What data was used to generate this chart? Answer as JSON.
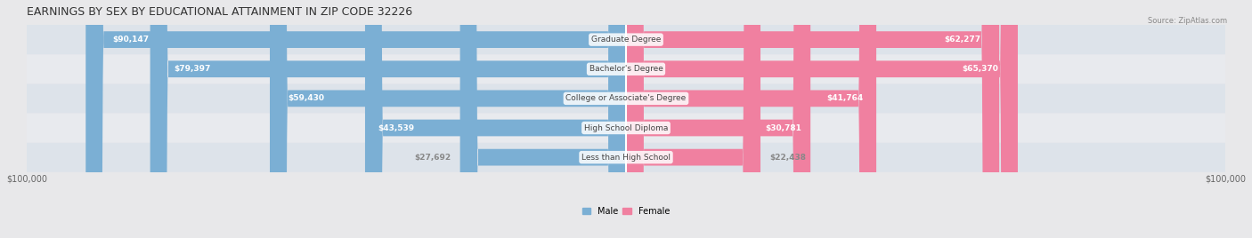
{
  "title": "EARNINGS BY SEX BY EDUCATIONAL ATTAINMENT IN ZIP CODE 32226",
  "source": "Source: ZipAtlas.com",
  "categories": [
    "Less than High School",
    "High School Diploma",
    "College or Associate's Degree",
    "Bachelor's Degree",
    "Graduate Degree"
  ],
  "male_values": [
    27692,
    43539,
    59430,
    79397,
    90147
  ],
  "female_values": [
    22438,
    30781,
    41764,
    65370,
    62277
  ],
  "male_color": "#7bafd4",
  "female_color": "#f080a0",
  "label_color_inside": "#ffffff",
  "label_color_outside": "#888888",
  "max_val": 100000,
  "background_color": "#f0f0f0",
  "row_bg_light": "#e8e8e8",
  "row_bg_dark": "#d8d8d8",
  "title_fontsize": 9,
  "bar_height": 0.55,
  "figsize": [
    14.06,
    2.68
  ],
  "dpi": 100
}
